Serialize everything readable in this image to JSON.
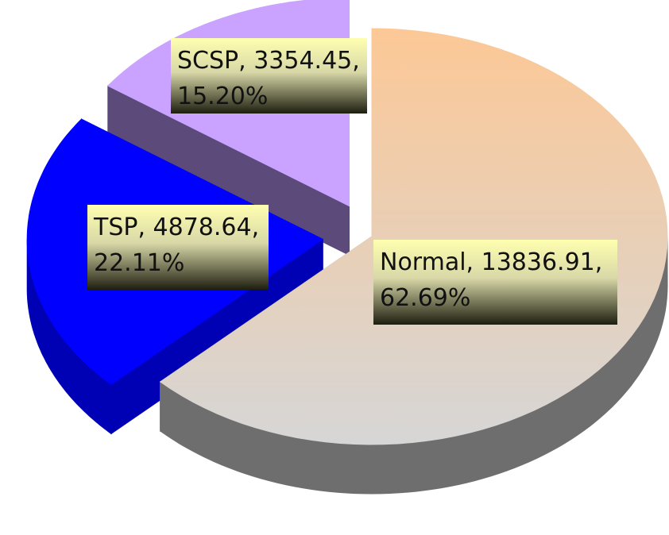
{
  "chart_data": {
    "type": "pie3d",
    "values": [
      13836.91,
      4878.64,
      3354.45
    ],
    "value_labels": [
      [
        "Normal, 13836.91,",
        "62.69%"
      ],
      [
        "TSP, 4878.64,",
        "22.11%"
      ],
      [
        "SCSP, 3354.45,",
        "15.20%"
      ]
    ],
    "colors": [
      "#f7c79a",
      "#0000ff",
      "#c9a3ff"
    ],
    "side_colors": [
      "#6e6e6e",
      "#0000b4",
      "#5b4a7a"
    ],
    "exploded": [
      false,
      true,
      true
    ]
  }
}
